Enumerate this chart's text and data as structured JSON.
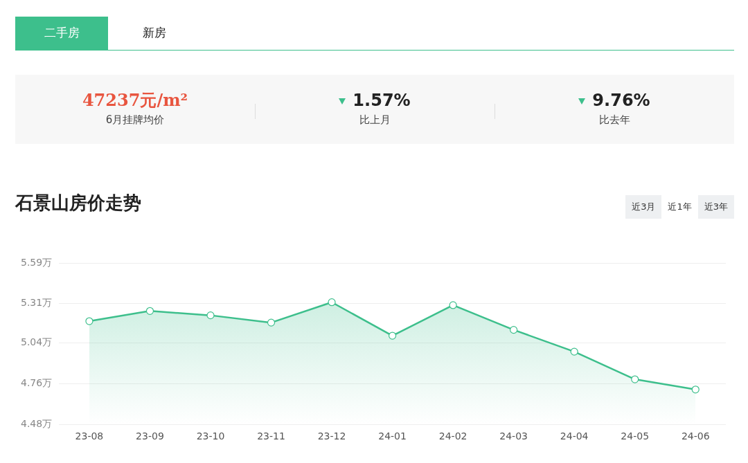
{
  "chart_data": [
    {
      "type": "other",
      "annotations": [
        "二手房",
        "新房",
        "47237元/m²",
        "6月挂牌均价",
        "1.57%",
        "比上月",
        "9.76%",
        "比去年"
      ]
    },
    {
      "type": "area",
      "title": "石景山房价走势",
      "annotations": [
        "近3月",
        "近1年",
        "近3年"
      ],
      "categories": [
        "23-08",
        "23-09",
        "23-10",
        "23-11",
        "23-12",
        "24-01",
        "24-02",
        "24-03",
        "24-04",
        "24-05",
        "24-06"
      ],
      "series": [
        {
          "color": "#3dbf8c",
          "values": [
            5.19,
            5.26,
            5.23,
            5.18,
            5.32,
            5.09,
            5.3,
            5.13,
            4.98,
            4.79,
            4.72
          ]
        }
      ],
      "ylim": [
        4.48,
        5.59
      ],
      "yticks": [
        {
          "value": 4.48,
          "label": "4.48万"
        },
        {
          "value": 4.76,
          "label": "4.76万"
        },
        {
          "value": 5.04,
          "label": "5.04万"
        },
        {
          "value": 5.31,
          "label": "5.31万"
        },
        {
          "value": 5.59,
          "label": "5.59万"
        }
      ],
      "grid": "y",
      "legend": false,
      "marker": "circle",
      "line_style": "solid"
    }
  ]
}
